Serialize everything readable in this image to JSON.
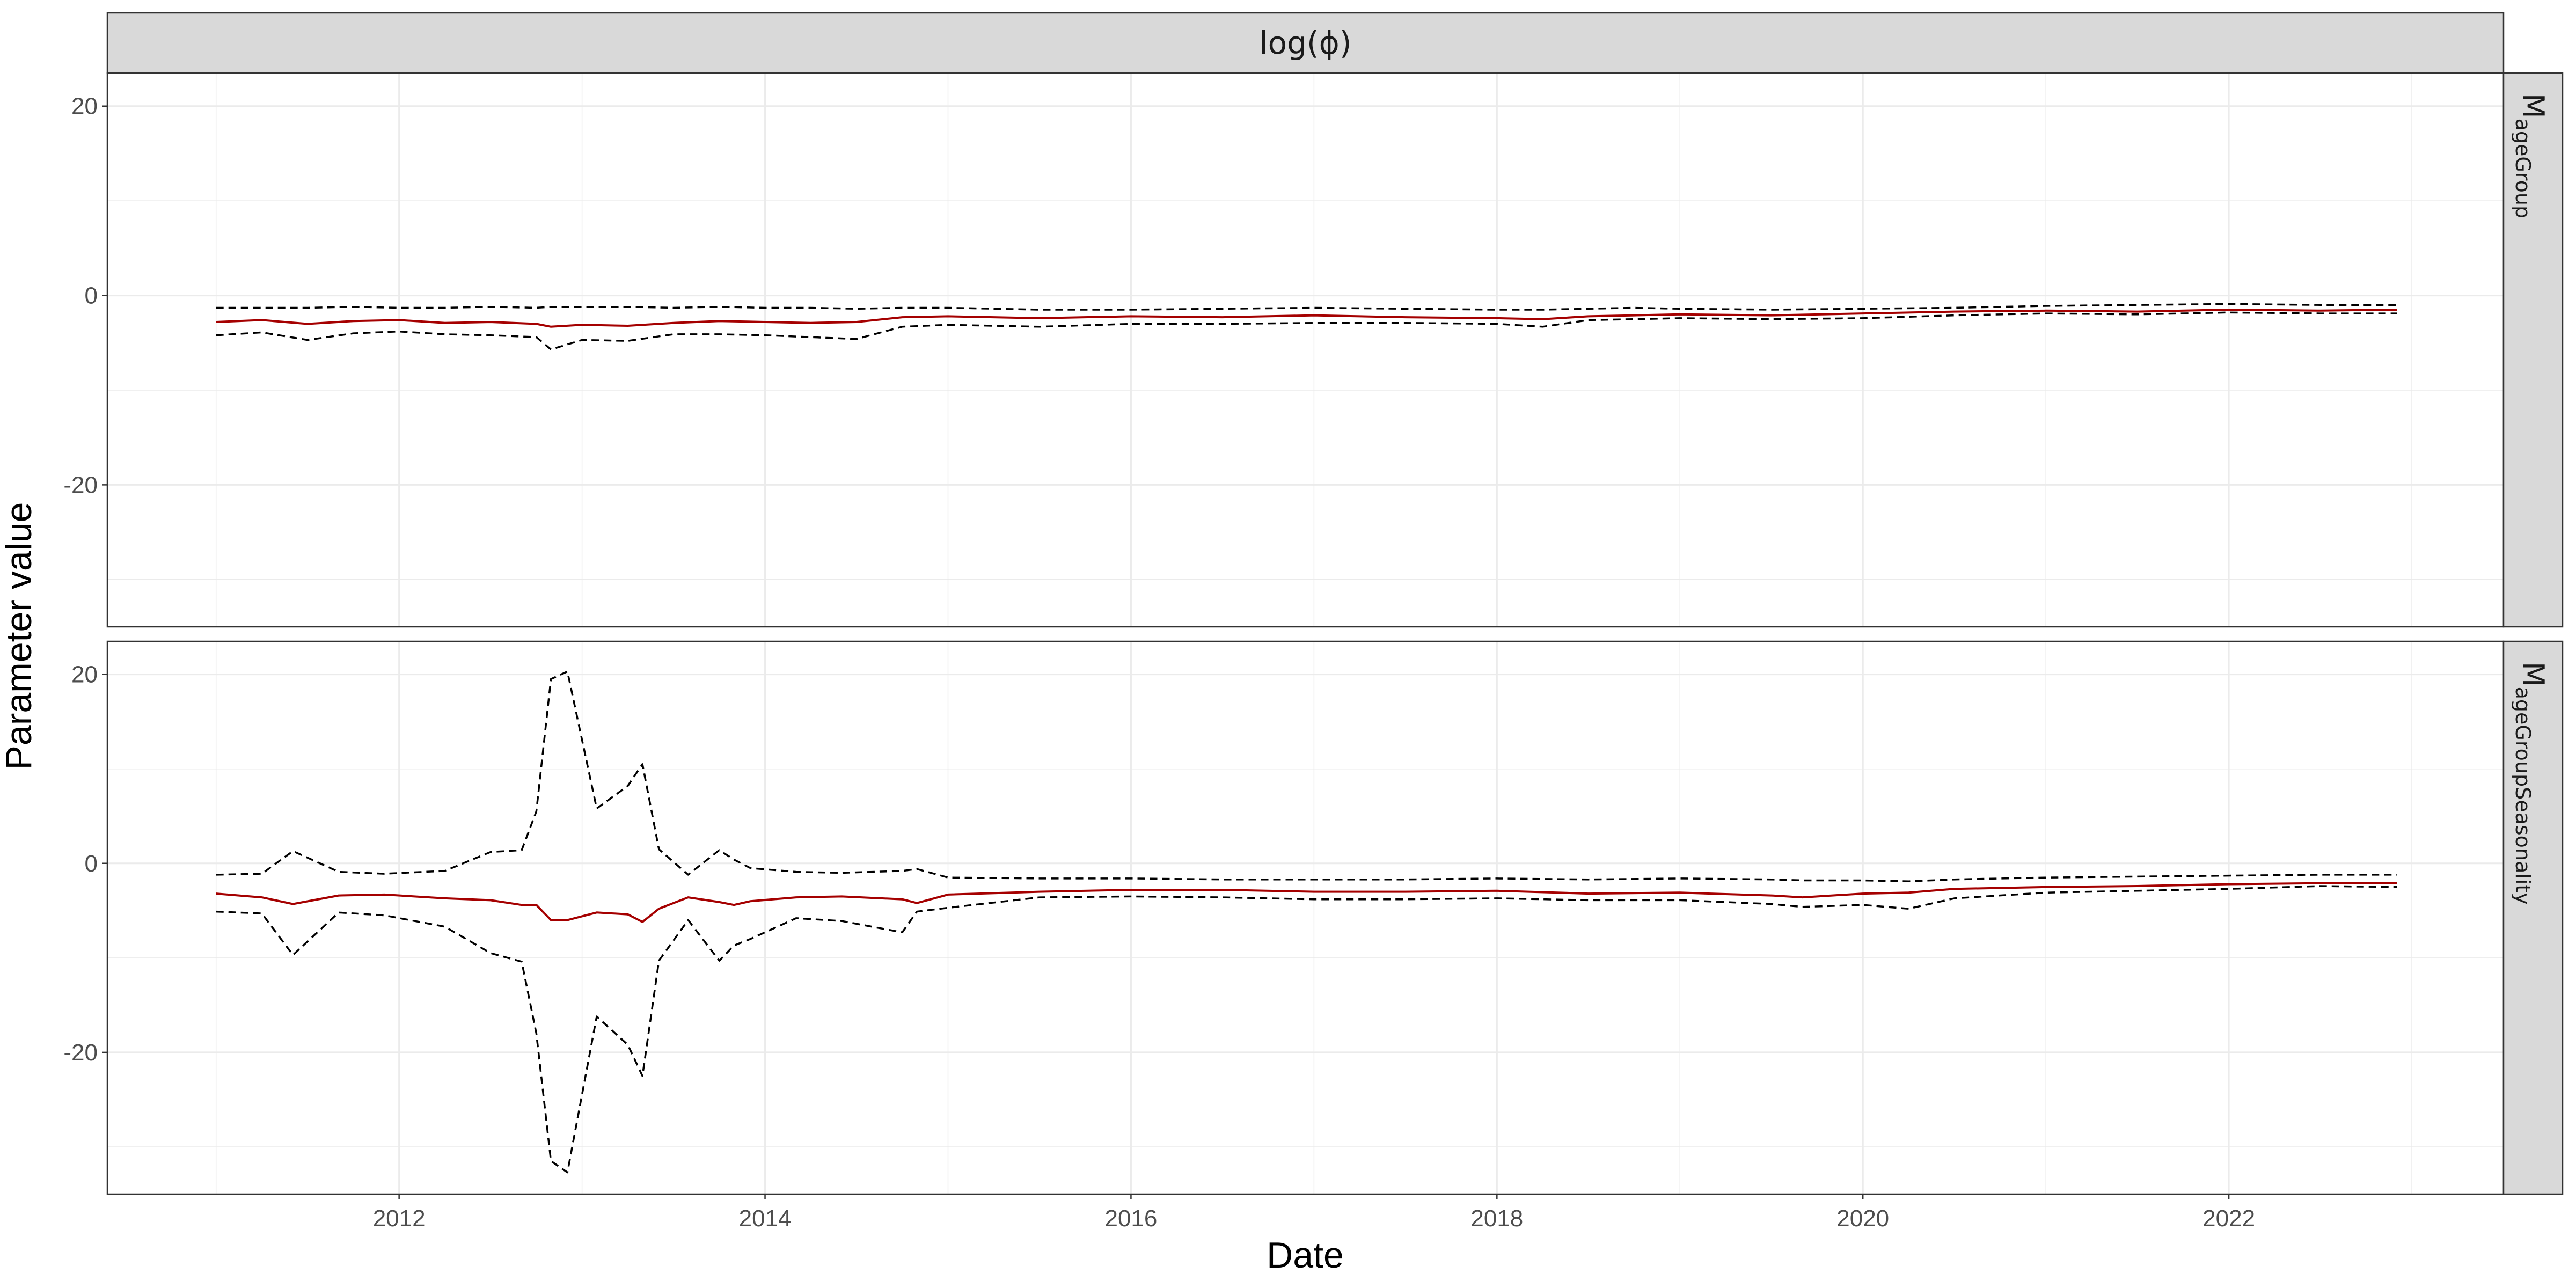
{
  "chart_data": {
    "type": "line",
    "title": "",
    "facet_strip_top": "log(ϕ)",
    "xlabel": "Date",
    "ylabel": "Parameter value",
    "xlim": [
      "2010-05-29",
      "2023-07-03"
    ],
    "ylim": [
      -35,
      23.5
    ],
    "x_ticks": [
      2012,
      2014,
      2016,
      2018,
      2020,
      2022
    ],
    "y_ticks": [
      20,
      0,
      -20
    ],
    "y_minor_ticks": [
      10,
      -10,
      -30
    ],
    "grid": true,
    "colors": {
      "estimate": "#a50000",
      "interval": "#000000",
      "strip_bg": "#d9d9d9",
      "grid": "#ebebeb",
      "border": "#333333",
      "tick_text": "#4d4d4d",
      "title_text": "#000000"
    },
    "panels": [
      {
        "label": "M",
        "label_sub": "ageGroup",
        "x": [
          2011.0,
          2011.25,
          2011.5,
          2011.75,
          2012.0,
          2012.25,
          2012.5,
          2012.75,
          2012.83,
          2013.0,
          2013.25,
          2013.5,
          2013.75,
          2014.0,
          2014.25,
          2014.5,
          2014.75,
          2015.0,
          2015.5,
          2016.0,
          2016.5,
          2017.0,
          2017.5,
          2018.0,
          2018.25,
          2018.5,
          2018.75,
          2019.0,
          2019.5,
          2020.0,
          2020.5,
          2021.0,
          2021.5,
          2022.0,
          2022.5,
          2022.92
        ],
        "series": [
          {
            "name": "",
            "role": "estimate",
            "values": [
              -2.8,
              -2.6,
              -3.0,
              -2.7,
              -2.6,
              -2.9,
              -2.8,
              -3.0,
              -3.3,
              -3.1,
              -3.2,
              -2.9,
              -2.7,
              -2.8,
              -2.9,
              -2.8,
              -2.3,
              -2.2,
              -2.4,
              -2.2,
              -2.3,
              -2.1,
              -2.3,
              -2.4,
              -2.5,
              -2.2,
              -2.1,
              -2.0,
              -2.1,
              -1.9,
              -1.7,
              -1.6,
              -1.7,
              -1.5,
              -1.6,
              -1.5
            ]
          },
          {
            "name": "",
            "role": "upper",
            "values": [
              -1.3,
              -1.3,
              -1.3,
              -1.2,
              -1.3,
              -1.3,
              -1.2,
              -1.3,
              -1.2,
              -1.2,
              -1.2,
              -1.3,
              -1.2,
              -1.3,
              -1.3,
              -1.4,
              -1.3,
              -1.3,
              -1.5,
              -1.5,
              -1.4,
              -1.3,
              -1.4,
              -1.5,
              -1.5,
              -1.4,
              -1.3,
              -1.4,
              -1.5,
              -1.4,
              -1.3,
              -1.1,
              -1.0,
              -0.9,
              -1.0,
              -1.0
            ]
          },
          {
            "name": "",
            "role": "lower",
            "values": [
              -4.2,
              -3.9,
              -4.7,
              -4.0,
              -3.8,
              -4.1,
              -4.2,
              -4.4,
              -5.7,
              -4.7,
              -4.8,
              -4.1,
              -4.1,
              -4.2,
              -4.4,
              -4.6,
              -3.3,
              -3.1,
              -3.3,
              -3.0,
              -3.0,
              -2.9,
              -2.9,
              -3.0,
              -3.3,
              -2.6,
              -2.5,
              -2.4,
              -2.5,
              -2.4,
              -2.1,
              -1.9,
              -2.0,
              -1.8,
              -1.9,
              -1.9
            ]
          }
        ]
      },
      {
        "label": "M",
        "label_sub": "ageGroupSeasonality",
        "x": [
          2011.0,
          2011.25,
          2011.42,
          2011.67,
          2011.92,
          2012.25,
          2012.5,
          2012.67,
          2012.75,
          2012.83,
          2012.92,
          2013.08,
          2013.25,
          2013.33,
          2013.42,
          2013.58,
          2013.75,
          2013.83,
          2013.92,
          2014.17,
          2014.42,
          2014.75,
          2014.83,
          2015.0,
          2015.5,
          2016.0,
          2016.5,
          2017.0,
          2017.5,
          2018.0,
          2018.5,
          2019.0,
          2019.5,
          2019.67,
          2020.0,
          2020.25,
          2020.5,
          2021.0,
          2021.5,
          2022.0,
          2022.5,
          2022.92
        ],
        "series": [
          {
            "name": "",
            "role": "estimate",
            "values": [
              -3.2,
              -3.6,
              -4.3,
              -3.4,
              -3.3,
              -3.7,
              -3.9,
              -4.4,
              -4.4,
              -6.0,
              -6.0,
              -5.2,
              -5.4,
              -6.2,
              -4.8,
              -3.6,
              -4.1,
              -4.4,
              -4.0,
              -3.6,
              -3.5,
              -3.8,
              -4.2,
              -3.3,
              -3.0,
              -2.8,
              -2.8,
              -3.0,
              -3.0,
              -2.9,
              -3.2,
              -3.1,
              -3.4,
              -3.6,
              -3.2,
              -3.1,
              -2.7,
              -2.5,
              -2.4,
              -2.2,
              -2.1,
              -2.1
            ]
          },
          {
            "name": "",
            "role": "upper",
            "values": [
              -1.2,
              -1.1,
              1.3,
              -0.9,
              -1.1,
              -0.8,
              1.2,
              1.4,
              5.5,
              19.5,
              20.3,
              5.8,
              8.2,
              10.5,
              1.5,
              -1.2,
              1.4,
              0.4,
              -0.5,
              -0.9,
              -1.0,
              -0.8,
              -0.6,
              -1.5,
              -1.6,
              -1.6,
              -1.7,
              -1.7,
              -1.7,
              -1.6,
              -1.7,
              -1.6,
              -1.7,
              -1.8,
              -1.8,
              -1.9,
              -1.7,
              -1.5,
              -1.4,
              -1.3,
              -1.2,
              -1.2
            ]
          },
          {
            "name": "",
            "role": "lower",
            "values": [
              -5.1,
              -5.3,
              -9.7,
              -5.2,
              -5.5,
              -6.7,
              -9.5,
              -10.4,
              -18.0,
              -31.5,
              -32.7,
              -16.2,
              -19.2,
              -22.5,
              -10.3,
              -6.0,
              -10.3,
              -8.7,
              -8.0,
              -5.8,
              -6.1,
              -7.3,
              -5.1,
              -4.7,
              -3.6,
              -3.5,
              -3.6,
              -3.8,
              -3.8,
              -3.7,
              -3.9,
              -3.9,
              -4.3,
              -4.6,
              -4.4,
              -4.8,
              -3.7,
              -3.1,
              -2.9,
              -2.7,
              -2.4,
              -2.5
            ]
          }
        ]
      }
    ]
  }
}
